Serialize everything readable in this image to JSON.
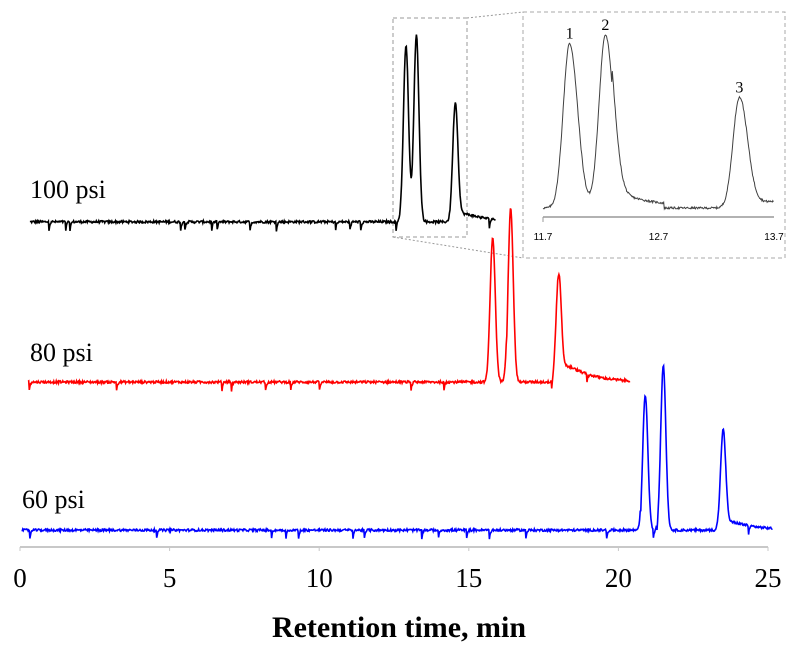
{
  "chart_data": {
    "type": "line",
    "title": "",
    "xlabel": "Retention time, min",
    "ylabel": "",
    "xlim": [
      0,
      25
    ],
    "ylim": [
      0,
      100
    ],
    "xticks": [
      "0",
      "5",
      "10",
      "15",
      "20",
      "25"
    ],
    "grid": false,
    "series": [
      {
        "name": "100 psi",
        "color": "#000000",
        "x_range": [
          0.33,
          15.9
        ],
        "baseline": 61.7,
        "peaks": [
          {
            "rt": 12.9,
            "height": 95.3
          },
          {
            "rt": 13.25,
            "height": 97.2
          },
          {
            "rt": 14.55,
            "height": 84.3
          }
        ],
        "tail": 2.5
      },
      {
        "name": "80 psi",
        "color": "#ff0000",
        "x_range": [
          0.27,
          20.4
        ],
        "baseline": 31.3,
        "peaks": [
          {
            "rt": 15.8,
            "height": 58.8
          },
          {
            "rt": 16.4,
            "height": 64.3
          },
          {
            "rt": 18.0,
            "height": 51.6
          }
        ],
        "tail": 5
      },
      {
        "name": "60 psi",
        "color": "#0000ff",
        "x_range": [
          0.07,
          25.15
        ],
        "baseline": 3.2,
        "peaks": [
          {
            "rt": 20.9,
            "height": 28.8
          },
          {
            "rt": 21.5,
            "height": 34.5
          },
          {
            "rt": 23.5,
            "height": 22.2
          }
        ],
        "tail": 2.5
      }
    ],
    "inset": {
      "xlim": [
        11.7,
        13.7
      ],
      "xticks": [
        "11.7",
        "12.7",
        "13.7"
      ],
      "ylim": [
        0,
        100
      ],
      "color": "#404040",
      "peaks": [
        {
          "label": "1",
          "rt": 11.93,
          "height": 95
        },
        {
          "label": "2",
          "rt": 12.24,
          "height": 100
        },
        {
          "label": "3",
          "rt": 13.4,
          "height": 64
        }
      ]
    }
  }
}
